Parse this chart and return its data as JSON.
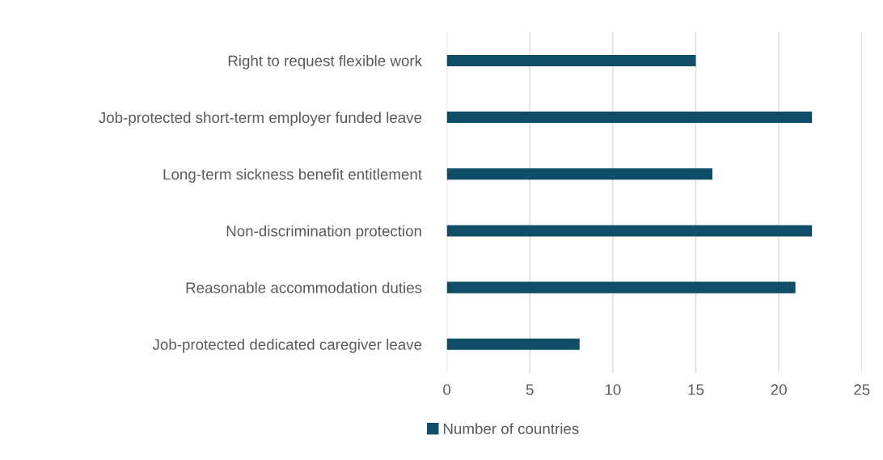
{
  "chart_data": {
    "type": "bar",
    "orientation": "horizontal",
    "categories": [
      "Right to request flexible work",
      "Job-protected short-term employer funded leave",
      "Long-term sickness benefit entitlement",
      "Non-discrimination protection",
      "Reasonable accommodation duties",
      "Job-protected dedicated caregiver leave"
    ],
    "series": [
      {
        "name": "Number of countries",
        "color": "#104e67",
        "values": [
          15,
          22,
          16,
          22,
          21,
          8
        ]
      }
    ],
    "xlim": [
      0,
      25
    ],
    "xticks": [
      0,
      5,
      10,
      15,
      20,
      25
    ],
    "grid": "x",
    "legend": "bottom"
  }
}
